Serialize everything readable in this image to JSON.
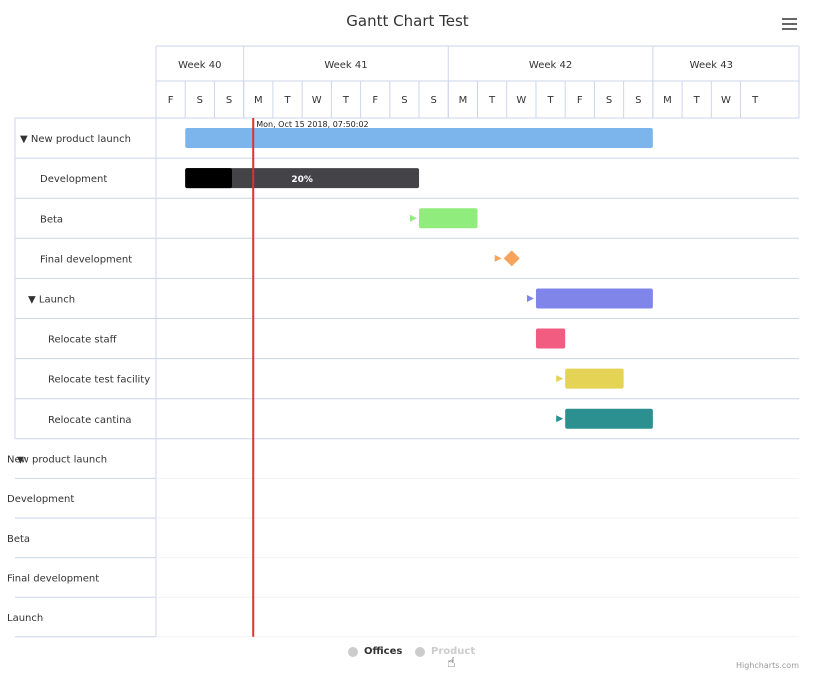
{
  "title": "Gantt Chart Test",
  "menu_icon": "hamburger-icon",
  "credits": "Highcharts.com",
  "legend": [
    {
      "label": "Offices",
      "active": true
    },
    {
      "label": "Product",
      "active": false
    }
  ],
  "colors": {
    "grid": "#ccd6eb",
    "current_date_line": "#e03030",
    "new_product_launch": "#7cb5ec",
    "development": "#434348",
    "development_complete": "#000000",
    "beta": "#90ed7d",
    "final_development": "#f7a35c",
    "launch": "#8085e9",
    "relocate_staff": "#f15c80",
    "relocate_test_facility": "#e4d354",
    "relocate_cantina": "#2b908f"
  },
  "chart_data": {
    "type": "gantt",
    "title": "Gantt Chart Test",
    "x_range": [
      "2018-10-12",
      "2018-11-03"
    ],
    "week_headers": [
      "Week 40",
      "Week 41",
      "Week 42",
      "Week 43"
    ],
    "day_headers": [
      "F",
      "S",
      "S",
      "M",
      "T",
      "W",
      "T",
      "F",
      "S",
      "S",
      "M",
      "T",
      "W",
      "T",
      "F",
      "S",
      "S",
      "M",
      "T",
      "W",
      "T"
    ],
    "current_date_label": "Mon, Oct 15 2018, 07:50:02",
    "current_date": "2018-10-15T07:50:02",
    "rows": [
      {
        "label": "▼ New product launch",
        "indent": 0,
        "start": "2018-10-13",
        "end": "2018-10-29",
        "type": "bar",
        "color_key": "new_product_launch"
      },
      {
        "label": "Development",
        "indent": 1,
        "start": "2018-10-13",
        "end": "2018-10-21",
        "type": "bar",
        "completed": 0.2,
        "data_label": "20%",
        "color_key": "development"
      },
      {
        "label": "Beta",
        "indent": 1,
        "start": "2018-10-21",
        "end": "2018-10-23",
        "type": "bar",
        "color_key": "beta"
      },
      {
        "label": "Final development",
        "indent": 1,
        "start": "2018-10-24",
        "type": "milestone",
        "color_key": "final_development"
      },
      {
        "label": "▼ Launch",
        "indent": 1,
        "start": "2018-10-25",
        "end": "2018-10-29",
        "type": "bar",
        "color_key": "launch"
      },
      {
        "label": "Relocate staff",
        "indent": 2,
        "start": "2018-10-25",
        "end": "2018-10-26",
        "type": "bar",
        "color_key": "relocate_staff"
      },
      {
        "label": "Relocate test facility",
        "indent": 2,
        "start": "2018-10-26",
        "end": "2018-10-28",
        "type": "bar",
        "color_key": "relocate_test_facility"
      },
      {
        "label": "Relocate cantina",
        "indent": 2,
        "start": "2018-10-26",
        "end": "2018-10-29",
        "type": "bar",
        "color_key": "relocate_cantina"
      }
    ],
    "hidden_rows": [
      {
        "label": "New product launch",
        "marker": "▼"
      },
      {
        "label": "Development"
      },
      {
        "label": "Beta"
      },
      {
        "label": "Final development"
      },
      {
        "label": "Launch"
      }
    ],
    "dependencies": [
      {
        "to": "Beta"
      },
      {
        "to": "Final development"
      },
      {
        "to": "▼ Launch"
      },
      {
        "to": "Relocate test facility"
      },
      {
        "to": "Relocate cantina"
      }
    ]
  }
}
